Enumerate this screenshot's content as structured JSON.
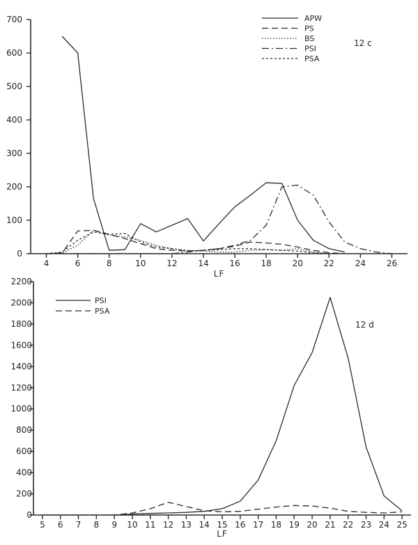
{
  "chart_data": [
    {
      "type": "line",
      "tag": "12 c",
      "xlabel": "LF",
      "ylabel": "",
      "xlim": [
        3,
        27
      ],
      "ylim": [
        0,
        700
      ],
      "xticks": [
        4,
        6,
        8,
        10,
        12,
        14,
        16,
        18,
        20,
        22,
        24,
        26
      ],
      "yticks": [
        0,
        100,
        200,
        300,
        400,
        500,
        600,
        700
      ],
      "legend": "top-right",
      "grid": false,
      "series": [
        {
          "name": "APW",
          "style": "solid",
          "x": [
            5,
            6,
            7,
            8,
            9,
            10,
            11,
            12,
            13,
            14,
            15,
            16,
            17,
            18,
            19,
            20,
            21,
            22,
            23
          ],
          "y": [
            650,
            600,
            165,
            10,
            12,
            90,
            65,
            85,
            105,
            38,
            90,
            140,
            175,
            212,
            210,
            100,
            40,
            15,
            5
          ]
        },
        {
          "name": "PS",
          "style": "dashed",
          "x": [
            4,
            5,
            6,
            7,
            8,
            9,
            10,
            11,
            12,
            13,
            14,
            15,
            16,
            17,
            18,
            19,
            20,
            21,
            22,
            23
          ],
          "y": [
            0,
            2,
            68,
            70,
            58,
            45,
            30,
            15,
            10,
            8,
            10,
            15,
            22,
            35,
            32,
            28,
            20,
            10,
            3,
            0
          ]
        },
        {
          "name": "BS",
          "style": "dotted",
          "x": [
            4,
            5,
            6,
            7,
            8,
            9,
            10,
            11,
            12,
            13,
            14,
            15,
            16,
            17,
            18,
            19,
            20,
            21,
            22
          ],
          "y": [
            0,
            2,
            25,
            70,
            55,
            50,
            40,
            25,
            15,
            10,
            8,
            5,
            5,
            10,
            12,
            10,
            15,
            5,
            0
          ]
        },
        {
          "name": "PSI",
          "style": "dashdot",
          "x": [
            4,
            5,
            6,
            7,
            8,
            9,
            10,
            11,
            12,
            13,
            14,
            15,
            16,
            17,
            18,
            19,
            20,
            21,
            22,
            23,
            24,
            25,
            26
          ],
          "y": [
            0,
            0,
            0,
            0,
            0,
            0,
            0,
            0,
            0,
            5,
            10,
            15,
            25,
            40,
            85,
            200,
            205,
            175,
            95,
            35,
            15,
            5,
            0
          ]
        },
        {
          "name": "PSA",
          "style": "short-dashed",
          "x": [
            4,
            5,
            6,
            7,
            8,
            9,
            10,
            11,
            12,
            13,
            14,
            15,
            16,
            17,
            18,
            19,
            20,
            21,
            22
          ],
          "y": [
            0,
            5,
            40,
            65,
            58,
            60,
            35,
            20,
            15,
            8,
            10,
            12,
            15,
            15,
            12,
            10,
            8,
            3,
            0
          ]
        }
      ]
    },
    {
      "type": "line",
      "tag": "12 d",
      "xlabel": "LF",
      "ylabel": "",
      "xlim": [
        4.5,
        25.5
      ],
      "ylim": [
        0,
        2200
      ],
      "xticks": [
        5,
        6,
        7,
        8,
        9,
        10,
        11,
        12,
        13,
        14,
        15,
        16,
        17,
        18,
        19,
        20,
        21,
        22,
        23,
        24,
        25
      ],
      "yticks": [
        0,
        200,
        400,
        600,
        800,
        1000,
        1200,
        1400,
        1600,
        1800,
        2000,
        2200
      ],
      "legend": "top-left",
      "grid": false,
      "series": [
        {
          "name": "PSI",
          "style": "solid",
          "x": [
            9,
            10,
            11,
            12,
            13,
            14,
            15,
            16,
            17,
            18,
            19,
            20,
            21,
            22,
            23,
            24,
            25
          ],
          "y": [
            0,
            10,
            15,
            20,
            25,
            35,
            60,
            130,
            330,
            700,
            1220,
            1530,
            2050,
            1480,
            640,
            180,
            40
          ]
        },
        {
          "name": "PSA",
          "style": "dashed",
          "x": [
            5,
            6,
            7,
            8,
            9,
            10,
            11,
            12,
            13,
            14,
            15,
            16,
            17,
            18,
            19,
            20,
            21,
            22,
            23,
            24,
            25
          ],
          "y": [
            0,
            0,
            0,
            0,
            0,
            20,
            60,
            120,
            80,
            40,
            30,
            35,
            55,
            75,
            90,
            85,
            65,
            35,
            25,
            20,
            30
          ]
        }
      ]
    }
  ]
}
